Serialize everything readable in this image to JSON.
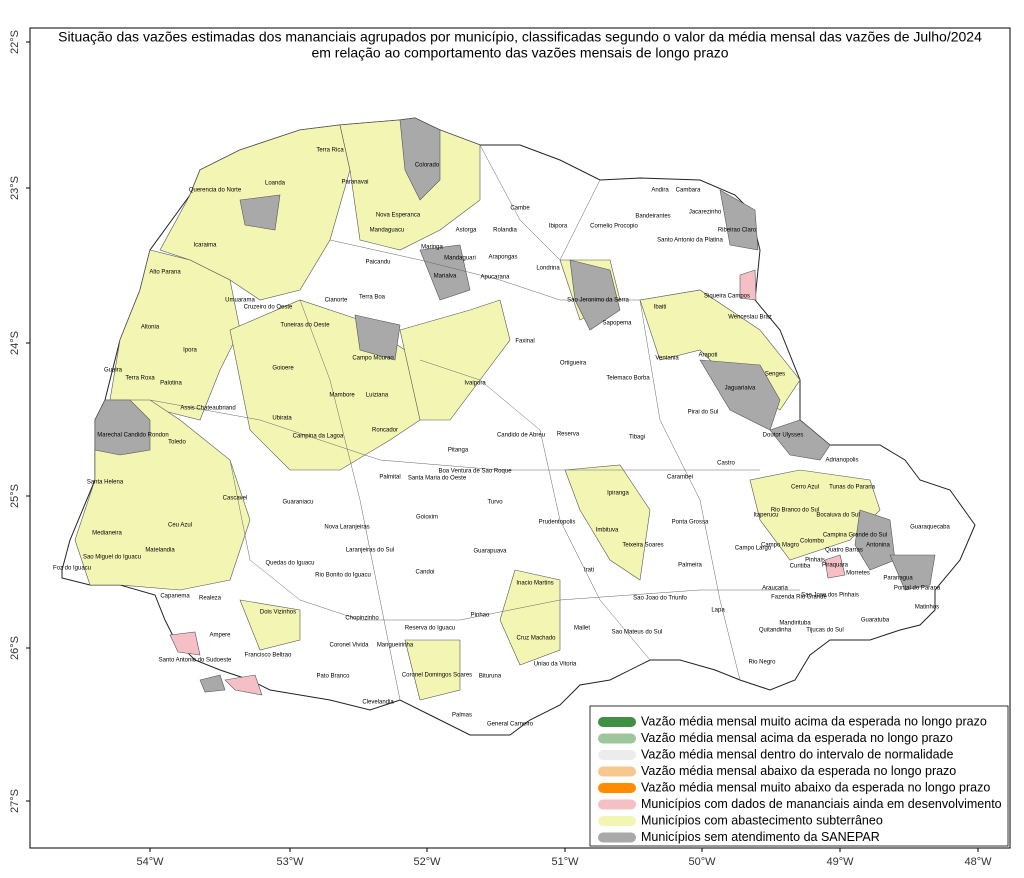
{
  "title": [
    "Situação das vazões estimadas dos mananciais agrupados por município, classificadas segundo o valor da média mensal das vazões de Julho/2024",
    "em relação ao comportamento das vazões mensais de longo prazo"
  ],
  "axes": {
    "x_ticks": [
      "54°W",
      "53°W",
      "52°W",
      "51°W",
      "50°W",
      "49°W",
      "48°W"
    ],
    "y_ticks": [
      "22°S",
      "23°S",
      "24°S",
      "25°S",
      "26°S",
      "27°S"
    ]
  },
  "legend": [
    {
      "label": "Vazão média mensal muito acima da esperada no longo prazo",
      "color": "#3f8f45"
    },
    {
      "label": "Vazão média mensal acima da esperada no longo prazo",
      "color": "#9dc79b"
    },
    {
      "label": "Vazão média mensal dentro do intervalo de normalidade",
      "color": "#ececec"
    },
    {
      "label": "Vazão média mensal abaixo da esperada no longo prazo",
      "color": "#f6c78f"
    },
    {
      "label": "Vazão média mensal muito abaixo da esperada no longo prazo",
      "color": "#ff8c00"
    },
    {
      "label": "Municípios com dados de mananciais ainda em desenvolvimento",
      "color": "#f4c0c5"
    },
    {
      "label": "Municípios com abastecimento subterrâneo",
      "color": "#f3f5b3"
    },
    {
      "label": "Municípios sem atendimento da SANEPAR",
      "color": "#a9a9a9"
    }
  ],
  "municipalities": [
    "Terra Rica",
    "Paranavai",
    "Colorado",
    "Querencia do Norte",
    "Loanda",
    "Nova Esperanca",
    "Astorga",
    "Cambe",
    "Rolandia",
    "Ibipora",
    "Andira",
    "Cambara",
    "Bandeirantes",
    "Jacarezinho",
    "Cornelio Procopio",
    "Santo Antonio da Platina",
    "Ribeirao Claro",
    "Icaraima",
    "Maringa",
    "Mandaguari",
    "Arapongas",
    "Londrina",
    "Alto Parana",
    "Cianorte",
    "Terra Boa",
    "Apucarana",
    "Umuarama",
    "Cruzeiro do Oeste",
    "Tuneiras do Oeste",
    "Sao Jeronimo da Serra",
    "Ibaiti",
    "Siqueira Campos",
    "Wenceslau Braz",
    "Altonia",
    "Sapopema",
    "Ipora",
    "Campo Mourao",
    "Faxinal",
    "Ortigueira",
    "Ventania",
    "Arapoti",
    "Guaira",
    "Terra Roxa",
    "Goioere",
    "Palotina",
    "Telemaco Borba",
    "Senges",
    "Mambore",
    "Luiziana",
    "Ivaipora",
    "Jaguariaiva",
    "Assis Chateaubriand",
    "Pirai do Sul",
    "Marechal Candido Rondon",
    "Ubirata",
    "Campina da Lagoa",
    "Roncador",
    "Toledo",
    "Pitanga",
    "Candido de Abreu",
    "Reserva",
    "Tibagi",
    "Doutor Ulysses",
    "Adrianopolis",
    "Castro",
    "Santa Helena",
    "Palmital",
    "Santa Maria do Oeste",
    "Boa Ventura de Sao Roque",
    "Carambei",
    "Cerro Azul",
    "Tunas do Parana",
    "Cascavel",
    "Guaraniacu",
    "Ipiranga",
    "Turvo",
    "Rio Branco do Sul",
    "Itaperucu",
    "Bocaiuva do Sul",
    "Ponta Grossa",
    "Goioxim",
    "Prudentopolis",
    "Imbituva",
    "Ceu Azul",
    "Medianeira",
    "Nova Laranjeiras",
    "Teixeira Soares",
    "Campina Grande do Sul",
    "Guaraquecaba",
    "Matelandia",
    "Antonina",
    "Campo Magro",
    "Colombo",
    "Campo Largo",
    "Quatro Barras",
    "Sao Miguel do Iguacu",
    "Laranjeiras do Sul",
    "Quedas do Iguacu",
    "Guarapuava",
    "Pinhais",
    "Piraquara",
    "Curitiba",
    "Palmeira",
    "Morretes",
    "Candoi",
    "Irati",
    "Foz do Iguacu",
    "Rio Bonito do Iguacu",
    "Paranagua",
    "Inacio Martins",
    "Sao Jose dos Pinhais",
    "Pontal do Parana",
    "Araucaria",
    "Fazenda Rio Grande",
    "Sao Joao do Triunfo",
    "Capanema",
    "Realeza",
    "Lapa",
    "Matinhos",
    "Dois Vizinhos",
    "Chopinzinho",
    "Reserva do Iguacu",
    "Pinhao",
    "Cruz Machado",
    "Guaratuba",
    "Mandirituba",
    "Tijucas do Sul",
    "Quitandinha",
    "Mallet",
    "Sao Mateus do Sul",
    "Ampere",
    "Coronel Vivida",
    "Mangueirinha",
    "Francisco Beltrao",
    "Santo Antonio do Sudoeste",
    "Uniao da Vitoria",
    "Rio Negro",
    "Coronel Domingos Soares",
    "Pato Branco",
    "Bituruna",
    "Clevelandia",
    "Palmas",
    "General Carneiro",
    "Marialva",
    "Mandaguacu",
    "Paicandu"
  ]
}
